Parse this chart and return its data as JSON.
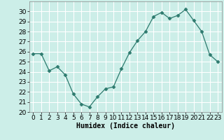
{
  "x": [
    0,
    1,
    2,
    3,
    4,
    5,
    6,
    7,
    8,
    9,
    10,
    11,
    12,
    13,
    14,
    15,
    16,
    17,
    18,
    19,
    20,
    21,
    22,
    23
  ],
  "y": [
    25.8,
    25.8,
    24.1,
    24.5,
    23.7,
    21.8,
    20.8,
    20.5,
    21.5,
    22.3,
    22.5,
    24.3,
    25.9,
    27.1,
    28.0,
    29.5,
    29.9,
    29.3,
    29.6,
    30.2,
    29.1,
    28.0,
    25.7,
    25.0
  ],
  "line_color": "#2d7a6e",
  "marker": "D",
  "marker_size": 2.5,
  "bg_color": "#cceee8",
  "grid_color": "#ffffff",
  "xlabel": "Humidex (Indice chaleur)",
  "ylim": [
    20,
    31
  ],
  "xlim": [
    -0.5,
    23.5
  ],
  "yticks": [
    20,
    21,
    22,
    23,
    24,
    25,
    26,
    27,
    28,
    29,
    30
  ],
  "xticks": [
    0,
    1,
    2,
    3,
    4,
    5,
    6,
    7,
    8,
    9,
    10,
    11,
    12,
    13,
    14,
    15,
    16,
    17,
    18,
    19,
    20,
    21,
    22,
    23
  ],
  "xlabel_fontsize": 7,
  "tick_fontsize": 6.5
}
